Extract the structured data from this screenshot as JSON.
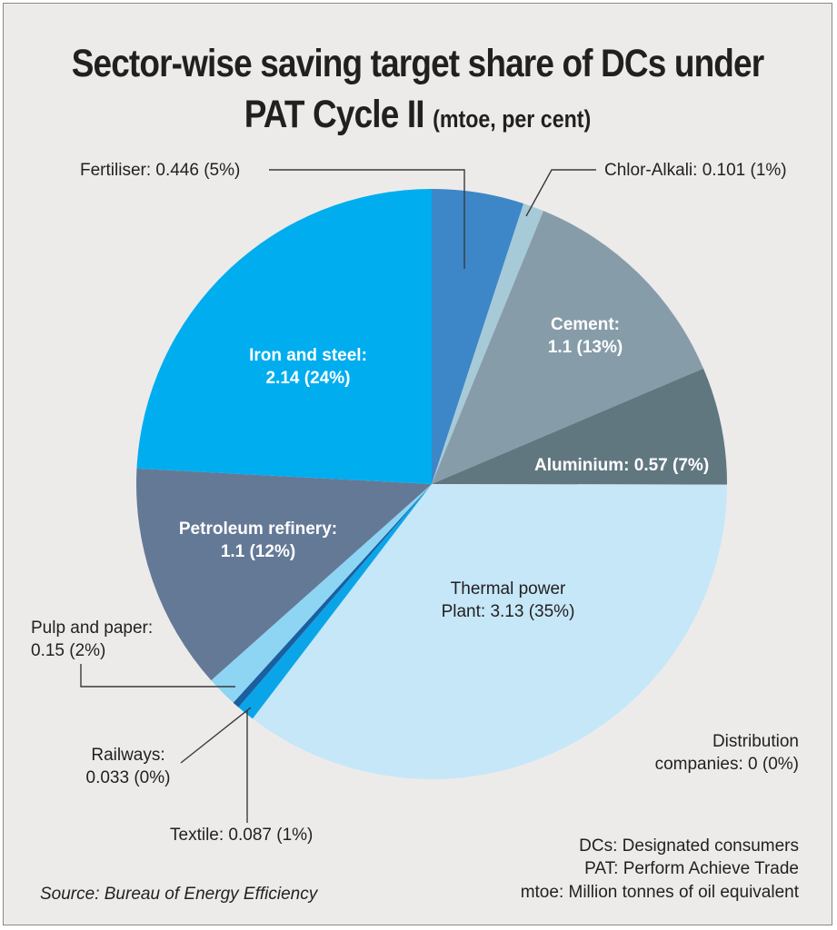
{
  "chart_data": {
    "type": "pie",
    "title": "Sector-wise saving target share of DCs under PAT Cycle II",
    "subtitle": "(mtoe, per cent)",
    "start_angle": "12 o'clock",
    "direction": "clockwise",
    "slices": [
      {
        "name": "Fertiliser",
        "value": 0.446,
        "percent": 5,
        "label": "Fertiliser: 0.446 (5%)",
        "color": "#3d87c8"
      },
      {
        "name": "Chlor-Alkali",
        "value": 0.101,
        "percent": 1,
        "label": "Chlor-Alkali: 0.101 (1%)",
        "color": "#a7cad8"
      },
      {
        "name": "Cement",
        "value": 1.1,
        "percent": 13,
        "label_line1": "Cement:",
        "label_line2": "1.1 (13%)",
        "color": "#879ca9"
      },
      {
        "name": "Aluminium",
        "value": 0.57,
        "percent": 7,
        "label": "Aluminium: 0.57 (7%)",
        "color": "#617780"
      },
      {
        "name": "Thermal power Plant",
        "value": 3.13,
        "percent": 35,
        "label_line1": "Thermal power",
        "label_line2": "Plant: 3.13 (35%)",
        "color": "#c6e7f8"
      },
      {
        "name": "Distribution companies",
        "value": 0,
        "percent": 0,
        "label_line1": "Distribution",
        "label_line2": "companies: 0 (0%)",
        "color": "#c6e7f8"
      },
      {
        "name": "Textile",
        "value": 0.087,
        "percent": 1,
        "label": "Textile: 0.087 (1%)",
        "color": "#0aa5e8"
      },
      {
        "name": "Railways",
        "value": 0.033,
        "percent": 0,
        "label_line1": "Railways:",
        "label_line2": "0.033 (0%)",
        "color": "#1a5fa0"
      },
      {
        "name": "Pulp and paper",
        "value": 0.15,
        "percent": 2,
        "label_line1": "Pulp and paper:",
        "label_line2": "0.15 (2%)",
        "color": "#8dd5f3"
      },
      {
        "name": "Petroleum refinery",
        "value": 1.1,
        "percent": 12,
        "label_line1": "Petroleum refinery:",
        "label_line2": "1.1 (12%)",
        "color": "#647996"
      },
      {
        "name": "Iron and steel",
        "value": 2.14,
        "percent": 24,
        "label_line1": "Iron and steel:",
        "label_line2": "2.14 (24%)",
        "color": "#00adee"
      }
    ]
  },
  "notes": [
    "DCs: Designated consumers",
    "PAT: Perform Achieve Trade",
    "mtoe: Million tonnes of oil equivalent"
  ],
  "source": "Source: Bureau of Energy Efficiency"
}
